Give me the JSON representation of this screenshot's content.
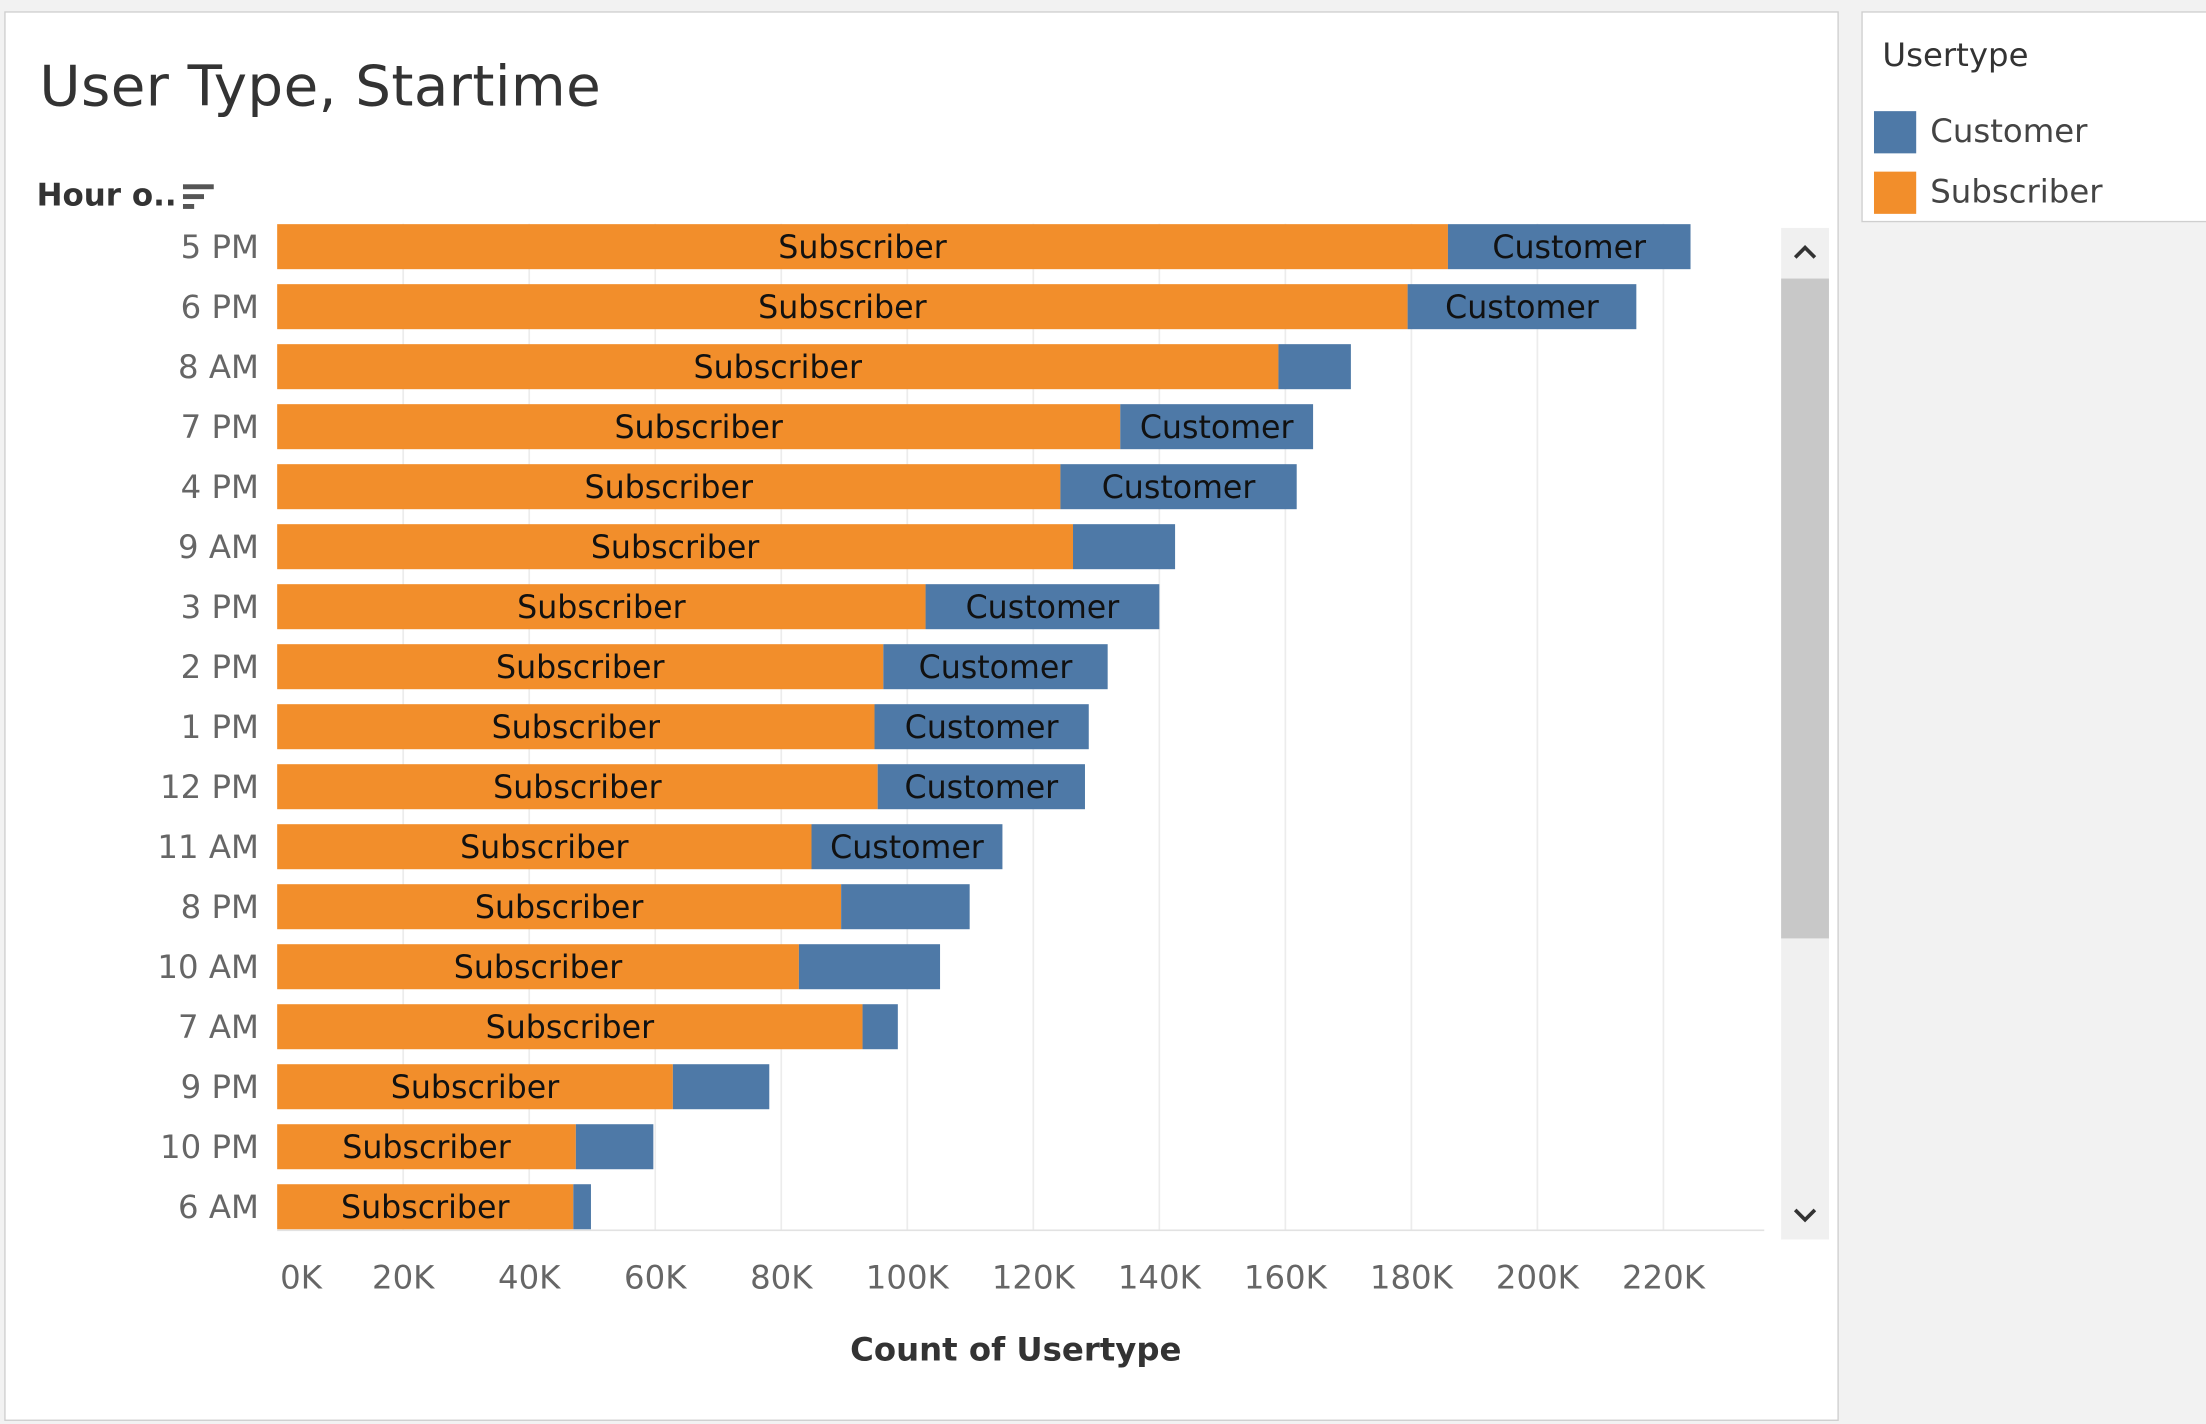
{
  "title": "User Type, Startime",
  "row_header": {
    "label": "Hour o..",
    "sort_icon": "sort-descending-icon"
  },
  "legend": {
    "title": "Usertype",
    "items": [
      {
        "label": "Customer",
        "color": "#4e79a7"
      },
      {
        "label": "Subscriber",
        "color": "#f28e2b"
      }
    ]
  },
  "scrollbar": {
    "up_icon": "chevron-up-icon",
    "down_icon": "chevron-down-icon"
  },
  "chart_data": {
    "type": "bar",
    "orientation": "horizontal",
    "stacked": true,
    "categories": [
      "5 PM",
      "6 PM",
      "8 AM",
      "7 PM",
      "4 PM",
      "9 AM",
      "3 PM",
      "2 PM",
      "1 PM",
      "12 PM",
      "11 AM",
      "8 PM",
      "10 AM",
      "7 AM",
      "9 PM",
      "10 PM",
      "6 AM"
    ],
    "series": [
      {
        "name": "Subscriber",
        "color": "#f28e2b",
        "values": [
          185800,
          179400,
          158900,
          133800,
          124300,
          126300,
          102900,
          96200,
          94800,
          95300,
          84800,
          89500,
          82800,
          92900,
          62800,
          47400,
          47000
        ],
        "labels": [
          "Subscriber",
          "Subscriber",
          "Subscriber",
          "Subscriber",
          "Subscriber",
          "Subscriber",
          "Subscriber",
          "Subscriber",
          "Subscriber",
          "Subscriber",
          "Subscriber",
          "Subscriber",
          "Subscriber",
          "Subscriber",
          "Subscriber",
          "Subscriber",
          "Subscriber"
        ]
      },
      {
        "name": "Customer",
        "color": "#4e79a7",
        "values": [
          38500,
          36300,
          11500,
          30600,
          37500,
          16200,
          37100,
          35600,
          34000,
          32900,
          30300,
          20400,
          22400,
          5600,
          15300,
          12300,
          2800
        ],
        "labels": [
          "Customer",
          "Customer",
          "",
          "Customer",
          "Customer",
          "",
          "Customer",
          "Customer",
          "Customer",
          "Customer",
          "Customer",
          "",
          "",
          "",
          "",
          "",
          ""
        ]
      }
    ],
    "xlabel": "Count of Usertype",
    "xlim": [
      0,
      236000
    ],
    "xticks": [
      0,
      20000,
      40000,
      60000,
      80000,
      100000,
      120000,
      140000,
      160000,
      180000,
      200000,
      220000
    ],
    "xtick_labels": [
      "0K",
      "20K",
      "40K",
      "60K",
      "80K",
      "100K",
      "120K",
      "140K",
      "160K",
      "180K",
      "200K",
      "220K"
    ],
    "grid": true,
    "legend_position": "right"
  }
}
